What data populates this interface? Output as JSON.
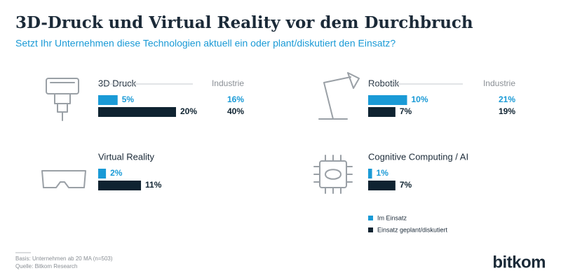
{
  "title": "3D-Druck und Virtual Reality vor dem Durchbruch",
  "subtitle": "Setzt Ihr Unternehmen diese Technologien aktuell ein oder plant/diskutiert den Einsatz?",
  "legend": [
    {
      "name": "Im Einsatz",
      "color": "#1a9ad6"
    },
    {
      "name": "Einsatz geplant/diskutiert",
      "color": "#0f2331"
    }
  ],
  "chart_data": [
    {
      "type": "bar",
      "title": "3D Druck",
      "values": [
        5,
        20
      ],
      "value_labels": [
        "5%",
        "20%"
      ],
      "xlim": [
        0,
        100
      ],
      "comparison": {
        "label": "Industrie",
        "values": [
          16,
          40
        ],
        "value_labels": [
          "16%",
          "40%"
        ]
      }
    },
    {
      "type": "bar",
      "title": "Robotik",
      "values": [
        10,
        7
      ],
      "value_labels": [
        "10%",
        "7%"
      ],
      "xlim": [
        0,
        100
      ],
      "comparison": {
        "label": "Industrie",
        "values": [
          21,
          19
        ],
        "value_labels": [
          "21%",
          "19%"
        ]
      }
    },
    {
      "type": "bar",
      "title": "Virtual Reality",
      "values": [
        2,
        11
      ],
      "value_labels": [
        "2%",
        "11%"
      ],
      "xlim": [
        0,
        100
      ]
    },
    {
      "type": "bar",
      "title": "Cognitive Computing / AI",
      "values": [
        1,
        7
      ],
      "value_labels": [
        "1%",
        "7%"
      ],
      "xlim": [
        0,
        100
      ]
    }
  ],
  "footnotes": [
    "Basis: Unternehmen ab 20 MA (n=503)",
    "Quelle: Bitkom Research"
  ],
  "logo": "bitkom"
}
